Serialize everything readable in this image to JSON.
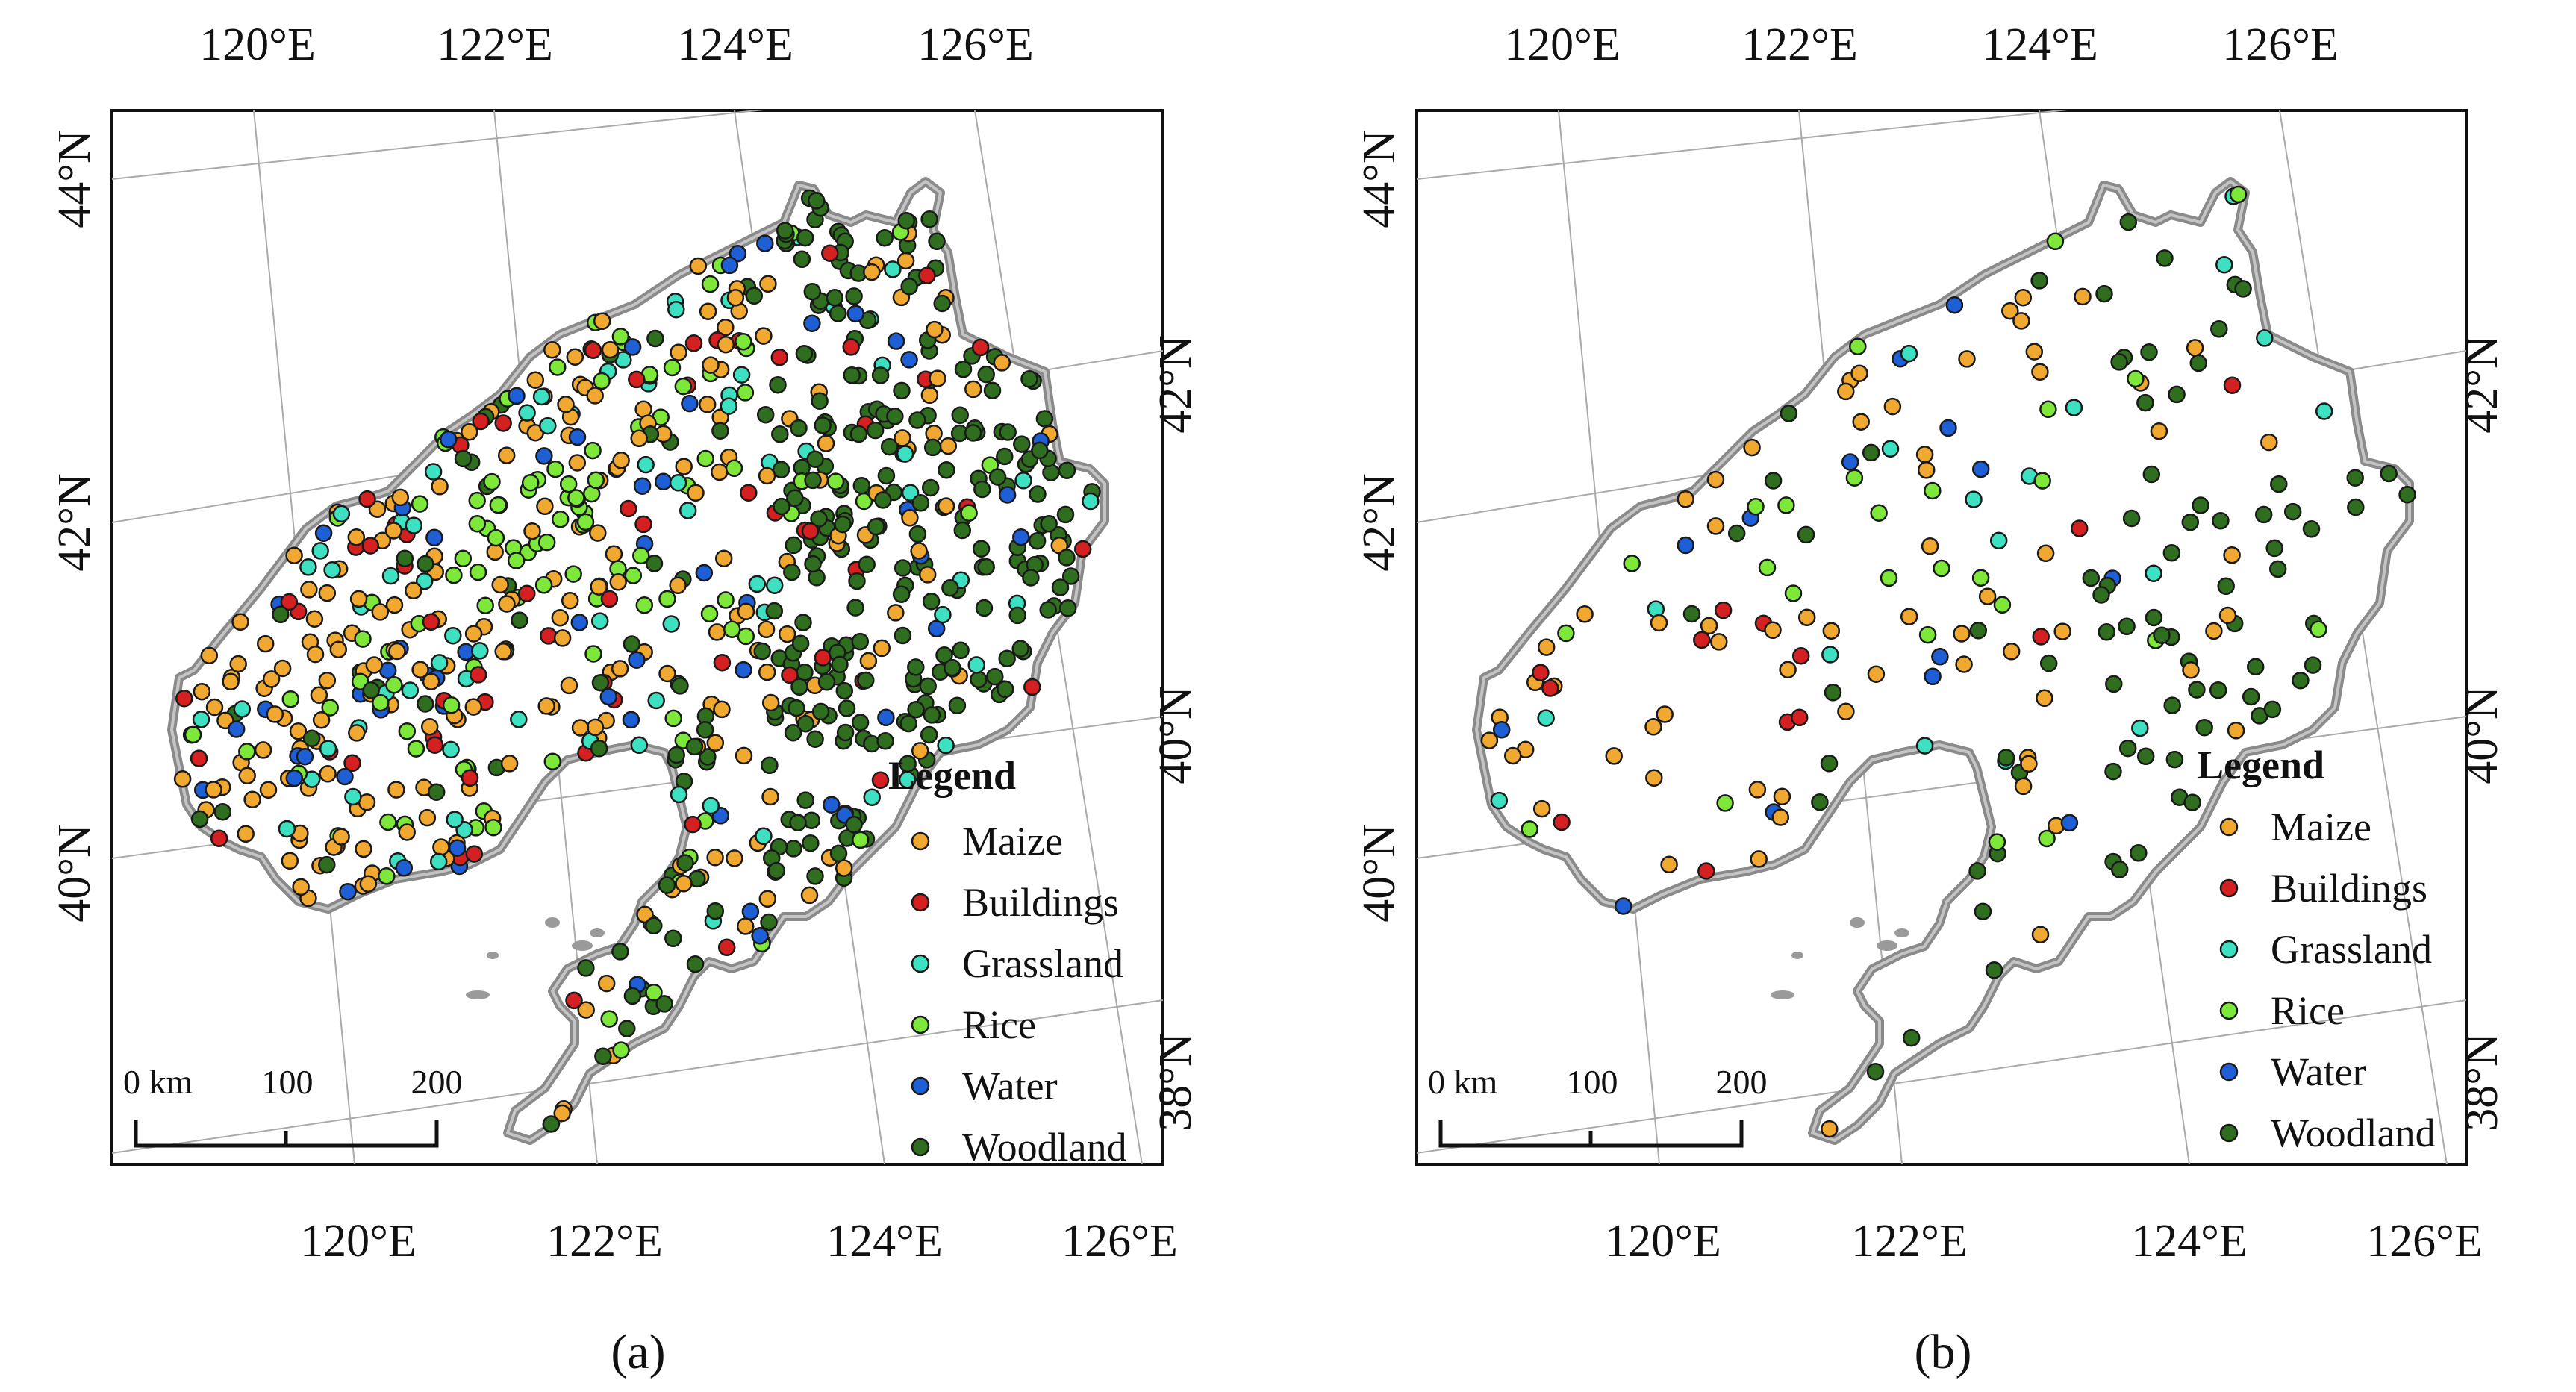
{
  "figure": {
    "panels": [
      {
        "id": "a",
        "caption": "(a)",
        "lon_labels_top": [
          "120°E",
          "122°E",
          "124°E",
          "126°E"
        ],
        "lon_labels_bottom": [
          "120°E",
          "122°E",
          "124°E",
          "126°E"
        ],
        "lat_labels_left": [
          "44°N",
          "42°N",
          "40°N"
        ],
        "lat_labels_right": [
          "42°N",
          "40°N",
          "38°N"
        ],
        "legend_title": "Legend",
        "scale_labels": [
          "0 km",
          "100",
          "200"
        ]
      },
      {
        "id": "b",
        "caption": "(b)",
        "lon_labels_top": [
          "120°E",
          "122°E",
          "124°E",
          "126°E"
        ],
        "lon_labels_bottom": [
          "120°E",
          "122°E",
          "124°E",
          "126°E"
        ],
        "lat_labels_left": [
          "44°N",
          "42°N",
          "40°N"
        ],
        "lat_labels_right": [
          "42°N",
          "40°N",
          "38°N"
        ],
        "legend_title": "Legend",
        "scale_labels": [
          "0 km",
          "100",
          "200"
        ]
      }
    ],
    "legend_items": [
      {
        "label": "Maize",
        "color": "#f0a830"
      },
      {
        "label": "Buildings",
        "color": "#d42020"
      },
      {
        "label": "Grassland",
        "color": "#3de0c0"
      },
      {
        "label": "Rice",
        "color": "#7ee83a"
      },
      {
        "label": "Water",
        "color": "#1f5fd6"
      },
      {
        "label": "Woodland",
        "color": "#2f6e1f"
      }
    ],
    "sample_density": {
      "a": 1.0,
      "b": 0.25
    }
  }
}
